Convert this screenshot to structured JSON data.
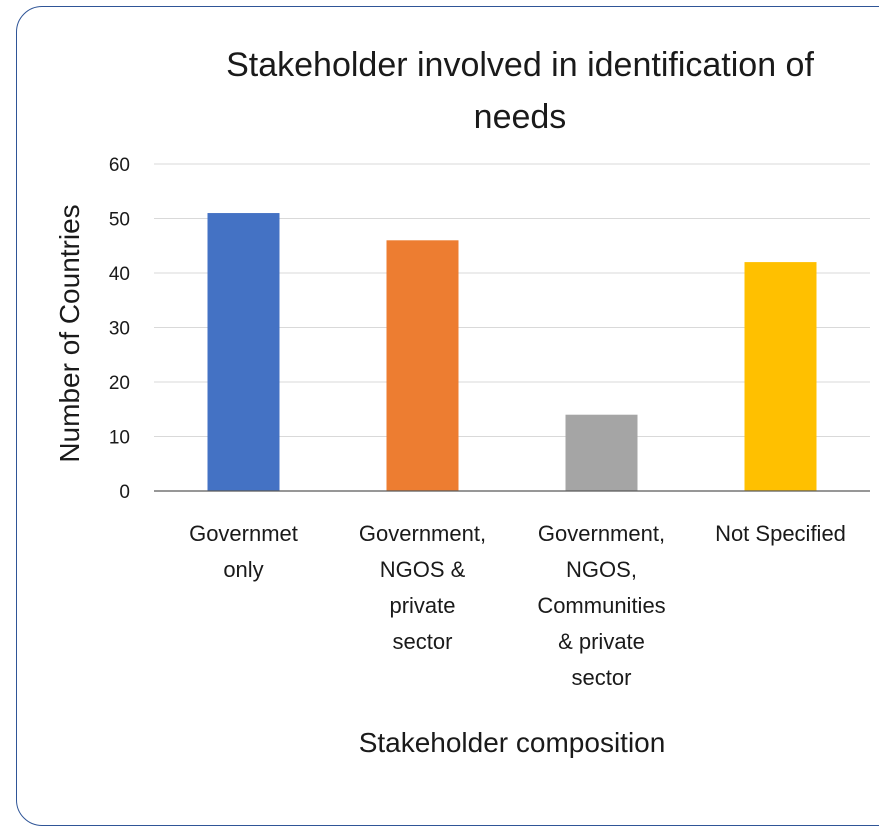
{
  "chart_data": {
    "type": "bar",
    "title_lines": [
      "Stakeholder involved in identification of",
      "needs"
    ],
    "xlabel": "Stakeholder composition",
    "ylabel": "Number of Countries",
    "categories": [
      "Governmet only",
      "Government, NGOS & private sector",
      "Government, NGOS, Communities & private sector",
      "Not Specified"
    ],
    "category_lines": [
      [
        "Governmet",
        "only"
      ],
      [
        "Government,",
        "NGOS &",
        "private",
        "sector"
      ],
      [
        "Government,",
        "NGOS,",
        "Communities",
        "& private",
        "sector"
      ],
      [
        "Not Specified"
      ]
    ],
    "values": [
      51,
      46,
      14,
      42
    ],
    "colors": [
      "#4472c4",
      "#ed7d31",
      "#a5a5a5",
      "#ffc000"
    ],
    "ylim": [
      0,
      60
    ],
    "yticks": [
      0,
      10,
      20,
      30,
      40,
      50,
      60
    ],
    "grid": true,
    "legend": "none",
    "frame_color": "#2f5597",
    "grid_color": "#d9d9d9",
    "axis_color": "#595959"
  }
}
